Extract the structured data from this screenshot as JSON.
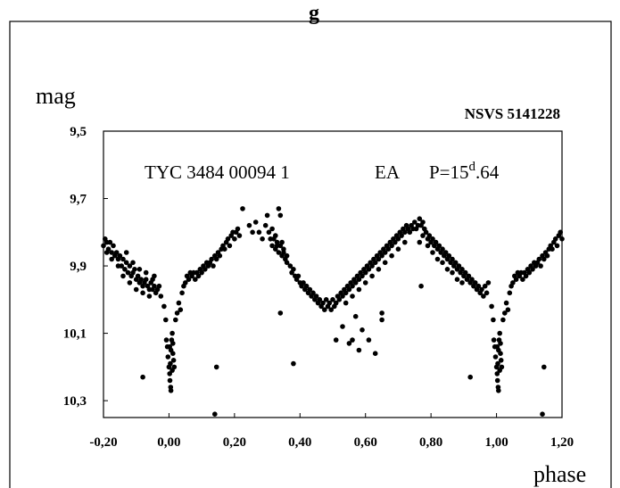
{
  "chart_data": {
    "type": "scatter",
    "title_fragment": "g",
    "star_id": "NSVS 5141228",
    "annotation": {
      "star": "TYC 3484 00094 1",
      "class": "EA",
      "period_prefix": "P=15",
      "period_sup": "d",
      "period_suffix": ".64"
    },
    "xlabel": "phase",
    "ylabel": "mag",
    "xlim": [
      -0.2,
      1.2
    ],
    "ylim": [
      9.5,
      10.35
    ],
    "y_inverted": true,
    "grid": false,
    "x_ticks": [
      {
        "value": -0.2,
        "label": "-0,20"
      },
      {
        "value": 0.0,
        "label": "0,00"
      },
      {
        "value": 0.2,
        "label": "0,20"
      },
      {
        "value": 0.4,
        "label": "0,40"
      },
      {
        "value": 0.6,
        "label": "0,60"
      },
      {
        "value": 0.8,
        "label": "0,80"
      },
      {
        "value": 1.0,
        "label": "1,00"
      },
      {
        "value": 1.2,
        "label": "1,20"
      }
    ],
    "y_ticks": [
      {
        "value": 9.5,
        "label": "9,5"
      },
      {
        "value": 9.7,
        "label": "9,7"
      },
      {
        "value": 9.9,
        "label": "9,9"
      },
      {
        "value": 10.1,
        "label": "10,1"
      },
      {
        "value": 10.3,
        "label": "10,3"
      }
    ],
    "points": [
      [
        -0.2,
        9.84
      ],
      [
        -0.195,
        9.82
      ],
      [
        -0.19,
        9.83
      ],
      [
        -0.185,
        9.85
      ],
      [
        -0.18,
        9.83
      ],
      [
        -0.175,
        9.86
      ],
      [
        -0.17,
        9.84
      ],
      [
        -0.165,
        9.87
      ],
      [
        -0.16,
        9.86
      ],
      [
        -0.155,
        9.88
      ],
      [
        -0.15,
        9.87
      ],
      [
        -0.145,
        9.9
      ],
      [
        -0.14,
        9.88
      ],
      [
        -0.135,
        9.91
      ],
      [
        -0.13,
        9.89
      ],
      [
        -0.125,
        9.92
      ],
      [
        -0.12,
        9.9
      ],
      [
        -0.115,
        9.93
      ],
      [
        -0.11,
        9.92
      ],
      [
        -0.105,
        9.91
      ],
      [
        -0.1,
        9.94
      ],
      [
        -0.095,
        9.93
      ],
      [
        -0.09,
        9.95
      ],
      [
        -0.085,
        9.94
      ],
      [
        -0.08,
        9.96
      ],
      [
        -0.075,
        9.95
      ],
      [
        -0.07,
        9.94
      ],
      [
        -0.065,
        9.96
      ],
      [
        -0.06,
        9.97
      ],
      [
        -0.055,
        9.95
      ],
      [
        -0.05,
        9.97
      ],
      [
        -0.045,
        9.96
      ],
      [
        -0.04,
        9.98
      ],
      [
        -0.035,
        9.97
      ],
      [
        -0.03,
        9.96
      ],
      [
        -0.025,
        9.99
      ],
      [
        -0.175,
        9.88
      ],
      [
        -0.155,
        9.9
      ],
      [
        -0.14,
        9.93
      ],
      [
        -0.12,
        9.95
      ],
      [
        -0.1,
        9.97
      ],
      [
        -0.08,
        9.98
      ],
      [
        -0.06,
        9.99
      ],
      [
        -0.045,
        9.93
      ],
      [
        -0.13,
        9.86
      ],
      [
        -0.11,
        9.89
      ],
      [
        -0.09,
        9.91
      ],
      [
        -0.07,
        9.92
      ],
      [
        -0.05,
        9.94
      ],
      [
        -0.19,
        9.86
      ],
      [
        -0.015,
        10.02
      ],
      [
        -0.01,
        10.06
      ],
      [
        -0.008,
        10.12
      ],
      [
        -0.005,
        10.14
      ],
      [
        -0.003,
        10.17
      ],
      [
        0.0,
        10.2
      ],
      [
        0.002,
        10.22
      ],
      [
        0.004,
        10.19
      ],
      [
        0.006,
        10.15
      ],
      [
        0.008,
        10.12
      ],
      [
        0.01,
        10.1
      ],
      [
        0.012,
        10.13
      ],
      [
        0.014,
        10.18
      ],
      [
        0.016,
        10.2
      ],
      [
        0.003,
        10.24
      ],
      [
        0.005,
        10.26
      ],
      [
        0.006,
        10.27
      ],
      [
        0.01,
        10.21
      ],
      [
        0.012,
        10.16
      ],
      [
        0.002,
        10.14
      ],
      [
        0.02,
        10.06
      ],
      [
        0.025,
        10.04
      ],
      [
        0.03,
        10.01
      ],
      [
        0.035,
        10.03
      ],
      [
        0.04,
        9.98
      ],
      [
        0.045,
        9.96
      ],
      [
        0.05,
        9.95
      ],
      [
        0.055,
        9.93
      ],
      [
        0.06,
        9.94
      ],
      [
        0.065,
        9.92
      ],
      [
        0.07,
        9.93
      ],
      [
        0.075,
        9.92
      ],
      [
        0.08,
        9.94
      ],
      [
        0.085,
        9.92
      ],
      [
        0.09,
        9.93
      ],
      [
        0.095,
        9.91
      ],
      [
        0.1,
        9.92
      ],
      [
        0.105,
        9.9
      ],
      [
        0.11,
        9.91
      ],
      [
        0.115,
        9.89
      ],
      [
        0.12,
        9.9
      ],
      [
        0.125,
        9.89
      ],
      [
        0.13,
        9.88
      ],
      [
        0.135,
        9.9
      ],
      [
        0.14,
        9.87
      ],
      [
        0.145,
        9.88
      ],
      [
        0.15,
        9.86
      ],
      [
        0.155,
        9.87
      ],
      [
        0.16,
        9.85
      ],
      [
        0.165,
        9.84
      ],
      [
        0.17,
        9.85
      ],
      [
        0.175,
        9.83
      ],
      [
        0.18,
        9.82
      ],
      [
        0.185,
        9.84
      ],
      [
        0.19,
        9.81
      ],
      [
        0.195,
        9.8
      ],
      [
        0.2,
        9.82
      ],
      [
        0.205,
        9.8
      ],
      [
        0.21,
        9.79
      ],
      [
        0.215,
        9.81
      ],
      [
        0.225,
        9.73
      ],
      [
        0.245,
        9.78
      ],
      [
        0.255,
        9.8
      ],
      [
        0.265,
        9.77
      ],
      [
        0.275,
        9.8
      ],
      [
        0.285,
        9.82
      ],
      [
        0.295,
        9.78
      ],
      [
        0.3,
        9.75
      ],
      [
        0.305,
        9.8
      ],
      [
        0.31,
        9.82
      ],
      [
        0.315,
        9.84
      ],
      [
        0.32,
        9.82
      ],
      [
        0.325,
        9.85
      ],
      [
        0.33,
        9.83
      ],
      [
        0.335,
        9.86
      ],
      [
        0.34,
        9.84
      ],
      [
        0.345,
        9.87
      ],
      [
        0.35,
        9.86
      ],
      [
        0.355,
        9.88
      ],
      [
        0.36,
        9.87
      ],
      [
        0.335,
        9.73
      ],
      [
        0.34,
        9.75
      ],
      [
        0.315,
        9.79
      ],
      [
        0.325,
        9.81
      ],
      [
        0.33,
        9.84
      ],
      [
        0.345,
        9.83
      ],
      [
        0.35,
        9.85
      ],
      [
        0.36,
        9.89
      ],
      [
        0.37,
        9.9
      ],
      [
        0.375,
        9.92
      ],
      [
        0.38,
        9.91
      ],
      [
        0.385,
        9.93
      ],
      [
        0.39,
        9.94
      ],
      [
        0.395,
        9.93
      ],
      [
        0.4,
        9.95
      ],
      [
        0.405,
        9.96
      ],
      [
        0.41,
        9.95
      ],
      [
        0.415,
        9.97
      ],
      [
        0.42,
        9.96
      ],
      [
        0.425,
        9.98
      ],
      [
        0.43,
        9.97
      ],
      [
        0.435,
        9.99
      ],
      [
        0.44,
        9.98
      ],
      [
        0.445,
        10.0
      ],
      [
        0.45,
        9.99
      ],
      [
        0.455,
        10.01
      ],
      [
        0.46,
        10.0
      ],
      [
        0.465,
        10.02
      ],
      [
        0.47,
        10.01
      ],
      [
        0.475,
        10.03
      ],
      [
        0.48,
        10.0
      ],
      [
        0.485,
        10.02
      ],
      [
        0.49,
        10.01
      ],
      [
        0.495,
        10.03
      ],
      [
        0.5,
        10.0
      ],
      [
        0.505,
        10.02
      ],
      [
        0.51,
        10.01
      ],
      [
        0.515,
        9.99
      ],
      [
        0.52,
        10.0
      ],
      [
        0.525,
        9.98
      ],
      [
        0.53,
        9.99
      ],
      [
        0.535,
        9.97
      ],
      [
        0.54,
        9.98
      ],
      [
        0.545,
        9.96
      ],
      [
        0.55,
        9.97
      ],
      [
        0.555,
        9.95
      ],
      [
        0.56,
        9.96
      ],
      [
        0.565,
        9.94
      ],
      [
        0.57,
        9.95
      ],
      [
        0.575,
        9.93
      ],
      [
        0.58,
        9.94
      ],
      [
        0.585,
        9.92
      ],
      [
        0.59,
        9.93
      ],
      [
        0.595,
        9.91
      ],
      [
        0.6,
        9.92
      ],
      [
        0.605,
        9.9
      ],
      [
        0.61,
        9.91
      ],
      [
        0.615,
        9.89
      ],
      [
        0.62,
        9.9
      ],
      [
        0.625,
        9.88
      ],
      [
        0.63,
        9.89
      ],
      [
        0.635,
        9.87
      ],
      [
        0.64,
        9.88
      ],
      [
        0.645,
        9.86
      ],
      [
        0.65,
        9.87
      ],
      [
        0.655,
        9.85
      ],
      [
        0.66,
        9.86
      ],
      [
        0.665,
        9.84
      ],
      [
        0.67,
        9.85
      ],
      [
        0.675,
        9.83
      ],
      [
        0.68,
        9.84
      ],
      [
        0.685,
        9.82
      ],
      [
        0.69,
        9.83
      ],
      [
        0.695,
        9.81
      ],
      [
        0.7,
        9.82
      ],
      [
        0.705,
        9.8
      ],
      [
        0.71,
        9.81
      ],
      [
        0.715,
        9.79
      ],
      [
        0.72,
        9.8
      ],
      [
        0.725,
        9.78
      ],
      [
        0.73,
        9.79
      ],
      [
        0.735,
        9.8
      ],
      [
        0.74,
        9.78
      ],
      [
        0.745,
        9.79
      ],
      [
        0.75,
        9.77
      ],
      [
        0.755,
        9.79
      ],
      [
        0.76,
        9.78
      ],
      [
        0.765,
        9.76
      ],
      [
        0.77,
        9.78
      ],
      [
        0.775,
        9.77
      ],
      [
        0.78,
        9.79
      ],
      [
        0.785,
        9.8
      ],
      [
        0.79,
        9.82
      ],
      [
        0.795,
        9.81
      ],
      [
        0.8,
        9.83
      ],
      [
        0.805,
        9.82
      ],
      [
        0.81,
        9.84
      ],
      [
        0.815,
        9.83
      ],
      [
        0.82,
        9.85
      ],
      [
        0.825,
        9.84
      ],
      [
        0.83,
        9.86
      ],
      [
        0.835,
        9.85
      ],
      [
        0.84,
        9.87
      ],
      [
        0.845,
        9.86
      ],
      [
        0.85,
        9.88
      ],
      [
        0.855,
        9.87
      ],
      [
        0.86,
        9.89
      ],
      [
        0.865,
        9.88
      ],
      [
        0.87,
        9.9
      ],
      [
        0.875,
        9.89
      ],
      [
        0.88,
        9.91
      ],
      [
        0.885,
        9.9
      ],
      [
        0.89,
        9.92
      ],
      [
        0.895,
        9.91
      ],
      [
        0.9,
        9.93
      ],
      [
        0.905,
        9.92
      ],
      [
        0.91,
        9.94
      ],
      [
        0.915,
        9.93
      ],
      [
        0.92,
        9.95
      ],
      [
        0.925,
        9.94
      ],
      [
        0.93,
        9.96
      ],
      [
        0.935,
        9.95
      ],
      [
        0.94,
        9.97
      ],
      [
        0.945,
        9.96
      ],
      [
        0.95,
        9.98
      ],
      [
        0.955,
        9.97
      ],
      [
        0.96,
        9.99
      ],
      [
        0.965,
        9.96
      ],
      [
        0.97,
        9.98
      ],
      [
        0.975,
        9.95
      ],
      [
        0.765,
        9.83
      ],
      [
        0.775,
        9.81
      ],
      [
        0.79,
        9.84
      ],
      [
        0.805,
        9.86
      ],
      [
        0.82,
        9.88
      ],
      [
        0.835,
        9.89
      ],
      [
        0.85,
        9.91
      ],
      [
        0.865,
        9.92
      ],
      [
        0.88,
        9.94
      ],
      [
        0.895,
        9.95
      ],
      [
        0.72,
        9.83
      ],
      [
        0.7,
        9.85
      ],
      [
        0.68,
        9.87
      ],
      [
        0.66,
        9.89
      ],
      [
        0.64,
        9.91
      ],
      [
        0.62,
        9.93
      ],
      [
        0.6,
        9.95
      ],
      [
        0.58,
        9.97
      ],
      [
        0.56,
        9.99
      ],
      [
        0.54,
        10.01
      ],
      [
        0.985,
        10.02
      ],
      [
        0.99,
        10.06
      ],
      [
        0.992,
        10.12
      ],
      [
        0.995,
        10.14
      ],
      [
        0.997,
        10.17
      ],
      [
        1.0,
        10.2
      ],
      [
        1.002,
        10.22
      ],
      [
        1.004,
        10.19
      ],
      [
        1.006,
        10.15
      ],
      [
        1.008,
        10.12
      ],
      [
        1.01,
        10.1
      ],
      [
        1.012,
        10.13
      ],
      [
        1.014,
        10.18
      ],
      [
        1.016,
        10.2
      ],
      [
        1.003,
        10.24
      ],
      [
        1.005,
        10.26
      ],
      [
        1.006,
        10.27
      ],
      [
        1.01,
        10.21
      ],
      [
        1.012,
        10.16
      ],
      [
        1.002,
        10.14
      ],
      [
        1.02,
        10.06
      ],
      [
        1.025,
        10.04
      ],
      [
        1.03,
        10.01
      ],
      [
        1.035,
        10.03
      ],
      [
        1.04,
        9.98
      ],
      [
        1.045,
        9.96
      ],
      [
        1.05,
        9.95
      ],
      [
        1.055,
        9.93
      ],
      [
        1.06,
        9.94
      ],
      [
        1.065,
        9.92
      ],
      [
        1.07,
        9.93
      ],
      [
        1.075,
        9.92
      ],
      [
        1.08,
        9.94
      ],
      [
        1.085,
        9.92
      ],
      [
        1.09,
        9.93
      ],
      [
        1.095,
        9.91
      ],
      [
        1.1,
        9.92
      ],
      [
        1.105,
        9.9
      ],
      [
        1.11,
        9.91
      ],
      [
        1.115,
        9.89
      ],
      [
        1.12,
        9.9
      ],
      [
        1.125,
        9.89
      ],
      [
        1.13,
        9.88
      ],
      [
        1.135,
        9.9
      ],
      [
        1.14,
        9.87
      ],
      [
        1.145,
        9.88
      ],
      [
        1.15,
        9.86
      ],
      [
        1.155,
        9.87
      ],
      [
        1.16,
        9.85
      ],
      [
        1.165,
        9.84
      ],
      [
        1.17,
        9.85
      ],
      [
        1.175,
        9.83
      ],
      [
        1.18,
        9.82
      ],
      [
        1.185,
        9.84
      ],
      [
        1.19,
        9.81
      ],
      [
        1.195,
        9.8
      ],
      [
        1.2,
        9.82
      ],
      [
        -0.08,
        10.23
      ],
      [
        0.145,
        10.2
      ],
      [
        0.14,
        10.34
      ],
      [
        0.38,
        10.19
      ],
      [
        0.34,
        10.04
      ],
      [
        0.51,
        10.12
      ],
      [
        0.55,
        10.13
      ],
      [
        0.56,
        10.12
      ],
      [
        0.58,
        10.15
      ],
      [
        0.59,
        10.09
      ],
      [
        0.61,
        10.12
      ],
      [
        0.63,
        10.16
      ],
      [
        0.65,
        10.04
      ],
      [
        0.65,
        10.06
      ],
      [
        0.77,
        9.96
      ],
      [
        0.92,
        10.23
      ],
      [
        1.145,
        10.2
      ],
      [
        1.14,
        10.34
      ],
      [
        0.53,
        10.08
      ],
      [
        0.57,
        10.05
      ]
    ]
  }
}
